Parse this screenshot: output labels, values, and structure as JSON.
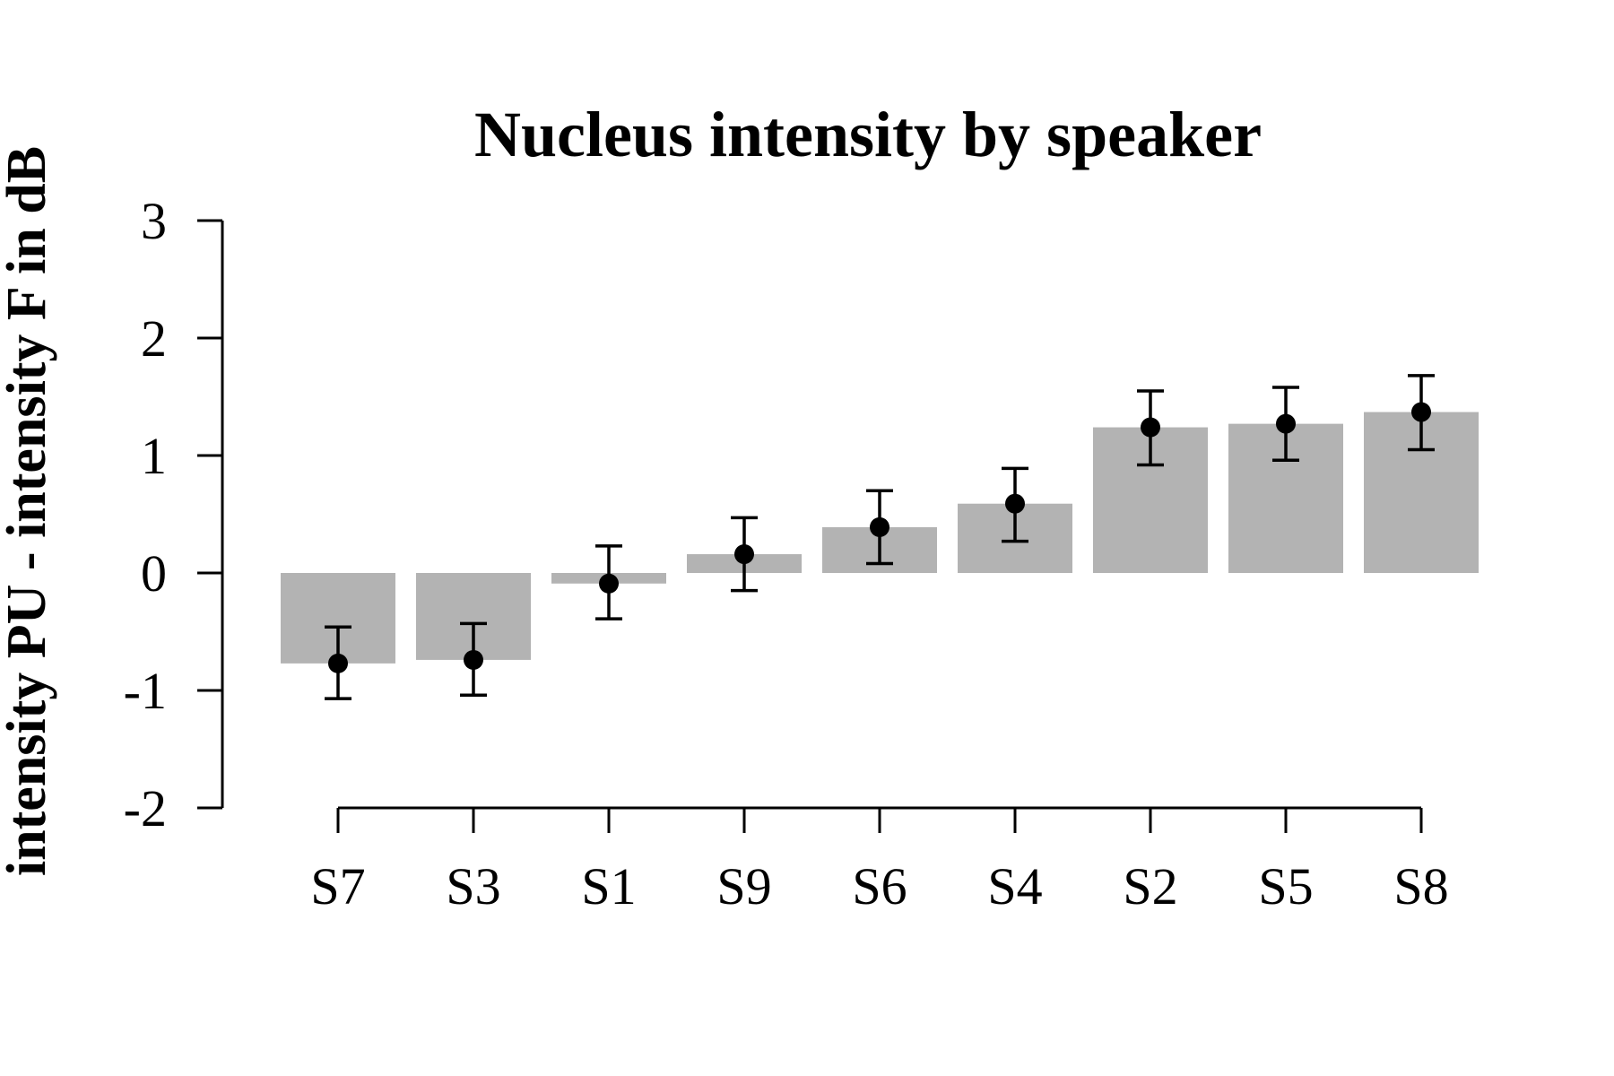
{
  "chart_data": {
    "type": "bar",
    "title": "Nucleus intensity by speaker",
    "xlabel": "",
    "ylabel": "intensity PU - intensity F in dB",
    "categories": [
      "S7",
      "S3",
      "S1",
      "S9",
      "S6",
      "S4",
      "S2",
      "S5",
      "S8"
    ],
    "values": [
      -0.77,
      -0.74,
      -0.09,
      0.16,
      0.39,
      0.59,
      1.24,
      1.27,
      1.37
    ],
    "error_low": [
      -1.07,
      -1.04,
      -0.39,
      -0.15,
      0.08,
      0.27,
      0.92,
      0.96,
      1.05
    ],
    "error_high": [
      -0.46,
      -0.43,
      0.23,
      0.47,
      0.7,
      0.89,
      1.55,
      1.58,
      1.68
    ],
    "ylim": [
      -2,
      3
    ],
    "yticks": [
      "-2",
      "-1",
      "0",
      "1",
      "2",
      "3"
    ],
    "grid": false,
    "colors": {
      "bar": "#b3b3b3",
      "point": "#000000",
      "axis": "#000000"
    }
  }
}
